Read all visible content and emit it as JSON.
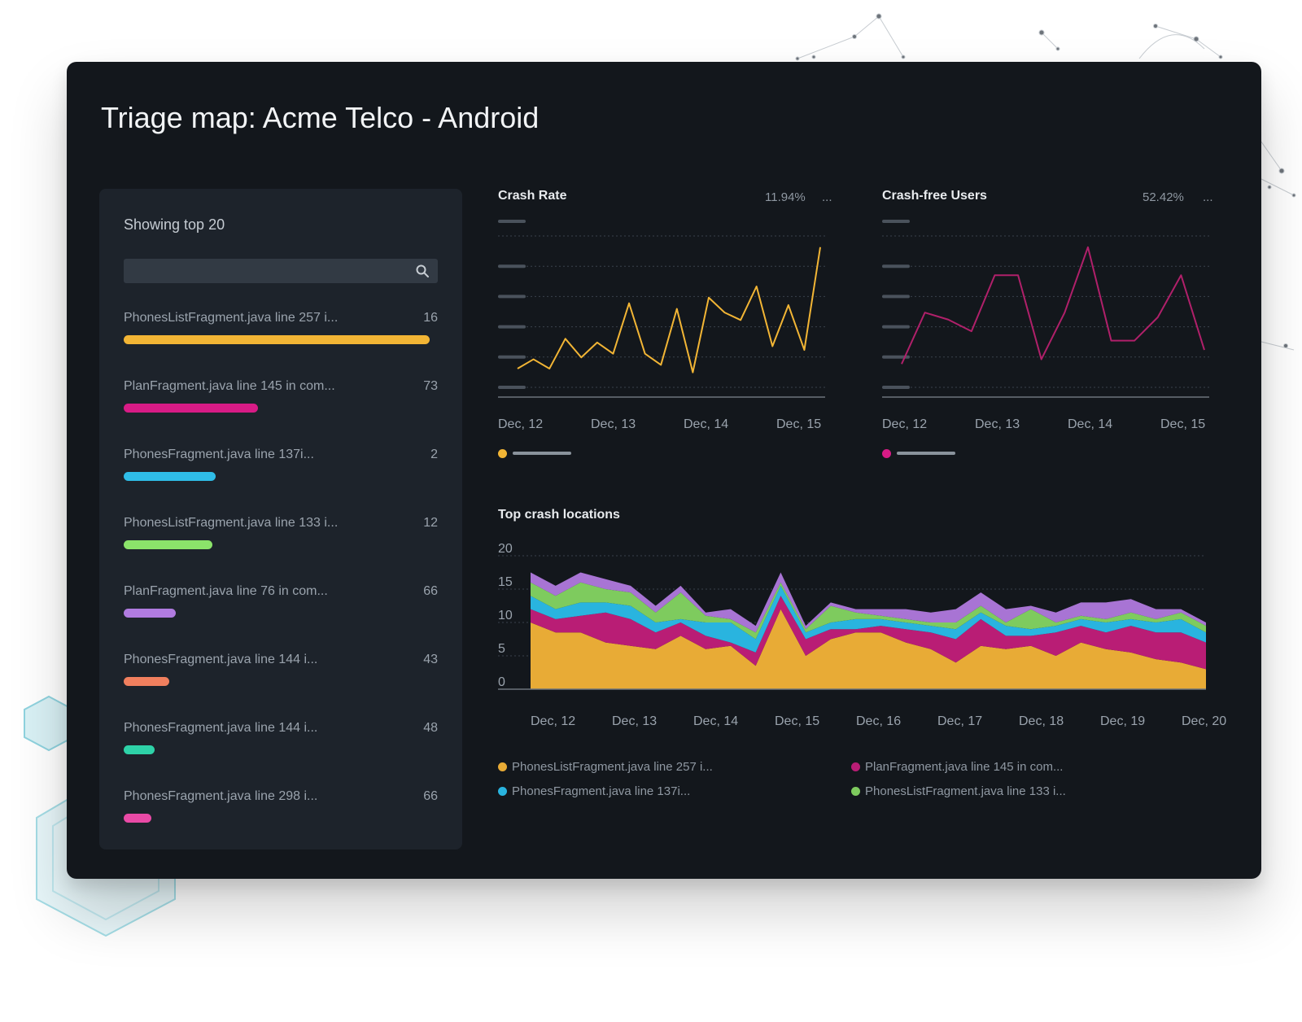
{
  "title": "Triage map: Acme Telco - Android",
  "panel": {
    "heading": "Showing top 20",
    "search_placeholder": "",
    "items": [
      {
        "label": "PhonesListFragment.java line 257 i...",
        "count": "16",
        "color": "#f2b535",
        "fill": 1.0
      },
      {
        "label": "PlanFragment.java line 145 in com...",
        "count": "73",
        "color": "#d81b86",
        "fill": 0.44
      },
      {
        "label": "PhonesFragment.java line 137i...",
        "count": "2",
        "color": "#2fbde8",
        "fill": 0.3
      },
      {
        "label": "PhonesListFragment.java line 133 i...",
        "count": "12",
        "color": "#8be36a",
        "fill": 0.29
      },
      {
        "label": "PlanFragment.java line 76 in com...",
        "count": "66",
        "color": "#b07be0",
        "fill": 0.17
      },
      {
        "label": "PhonesFragment.java line 144 i...",
        "count": "43",
        "color": "#f07f5e",
        "fill": 0.15
      },
      {
        "label": "PhonesFragment.java line 144 i...",
        "count": "48",
        "color": "#2ed2a8",
        "fill": 0.1
      },
      {
        "label": "PhonesFragment.java line 298 i...",
        "count": "66",
        "color": "#e94aa6",
        "fill": 0.09
      }
    ]
  },
  "crash_rate": {
    "title": "Crash Rate",
    "value": "11.94%",
    "more": "...",
    "color": "#f2b535"
  },
  "crash_free": {
    "title": "Crash-free Users",
    "value": "52.42%",
    "more": "...",
    "color": "#b0206a"
  },
  "top_crash": {
    "title": "Top crash locations"
  },
  "chart_data": [
    {
      "type": "line",
      "title": "Crash Rate",
      "x_ticks": [
        "Dec, 12",
        "Dec, 13",
        "Dec, 14",
        "Dec, 15"
      ],
      "y_tick_labels_visible": false,
      "grid": true,
      "series": [
        {
          "values": [
            1.0,
            1.5,
            1.0,
            2.6,
            1.6,
            2.4,
            1.8,
            4.5,
            1.8,
            1.2,
            4.2,
            0.8,
            4.8,
            4.0,
            3.6,
            5.4,
            2.2,
            4.4,
            2.0,
            7.5
          ]
        }
      ]
    },
    {
      "type": "line",
      "title": "Crash-free Users",
      "x_ticks": [
        "Dec, 12",
        "Dec, 13",
        "Dec, 14",
        "Dec, 15"
      ],
      "y_tick_labels_visible": false,
      "grid": true,
      "series": [
        {
          "values": [
            1.0,
            3.2,
            2.9,
            2.4,
            4.8,
            4.8,
            1.2,
            3.2,
            6.0,
            2.0,
            2.0,
            3.0,
            4.8,
            1.6
          ]
        }
      ]
    },
    {
      "type": "area",
      "title": "Top crash locations",
      "stacked": true,
      "x_ticks": [
        "Dec, 12",
        "Dec, 13",
        "Dec, 14",
        "Dec, 15",
        "Dec, 16",
        "Dec, 17",
        "Dec, 18",
        "Dec, 19",
        "Dec, 20"
      ],
      "y_ticks": [
        "20",
        "15",
        "10",
        "5",
        "0"
      ],
      "ylim": [
        0,
        20
      ],
      "grid": true,
      "series": [
        {
          "name": "PhonesListFragment.java line 257 i...",
          "color": "#e8ab36",
          "values": [
            10.0,
            8.5,
            8.5,
            7.0,
            6.5,
            6.0,
            8.0,
            6.0,
            6.5,
            3.5,
            12.0,
            5.0,
            7.5,
            8.5,
            8.5,
            7.0,
            6.0,
            4.0,
            6.5,
            6.0,
            6.5,
            5.0,
            7.0,
            6.0,
            5.5,
            4.5,
            4.0,
            3.0
          ]
        },
        {
          "name": "PlanFragment.java line 145 in com...",
          "color": "#b91d75",
          "values": [
            2.0,
            2.0,
            2.5,
            4.5,
            4.0,
            2.5,
            2.0,
            2.0,
            0.5,
            2.0,
            2.0,
            2.5,
            1.5,
            0.5,
            1.0,
            2.0,
            2.5,
            3.5,
            4.0,
            2.0,
            1.5,
            3.5,
            2.5,
            2.5,
            4.0,
            4.0,
            4.5,
            4.0
          ]
        },
        {
          "name": "PhonesFragment.java line 137i...",
          "color": "#29b4df",
          "values": [
            2.0,
            1.5,
            2.0,
            1.5,
            2.0,
            1.5,
            0.5,
            2.0,
            3.0,
            2.0,
            1.5,
            1.0,
            1.0,
            1.5,
            1.0,
            1.0,
            1.0,
            1.5,
            1.0,
            1.5,
            1.0,
            1.0,
            1.0,
            1.5,
            1.0,
            1.5,
            2.0,
            1.5
          ]
        },
        {
          "name": "PhonesListFragment.java line 133 i...",
          "color": "#7ecb5e",
          "values": [
            2.0,
            2.0,
            3.0,
            2.0,
            2.0,
            1.5,
            4.0,
            1.0,
            0.5,
            1.0,
            0.5,
            0.5,
            2.5,
            1.0,
            0.5,
            0.5,
            0.5,
            1.0,
            1.0,
            0.5,
            3.0,
            0.5,
            0.5,
            0.5,
            1.0,
            0.5,
            1.0,
            1.0
          ]
        },
        {
          "name": "",
          "color": "#a874d4",
          "values": [
            1.5,
            1.5,
            1.5,
            1.5,
            1.0,
            1.0,
            1.0,
            0.5,
            1.5,
            1.0,
            1.5,
            0.5,
            0.5,
            0.5,
            1.0,
            1.5,
            1.5,
            2.0,
            2.0,
            2.0,
            0.5,
            1.5,
            2.0,
            2.5,
            2.0,
            1.5,
            0.5,
            0.5
          ]
        }
      ]
    }
  ]
}
